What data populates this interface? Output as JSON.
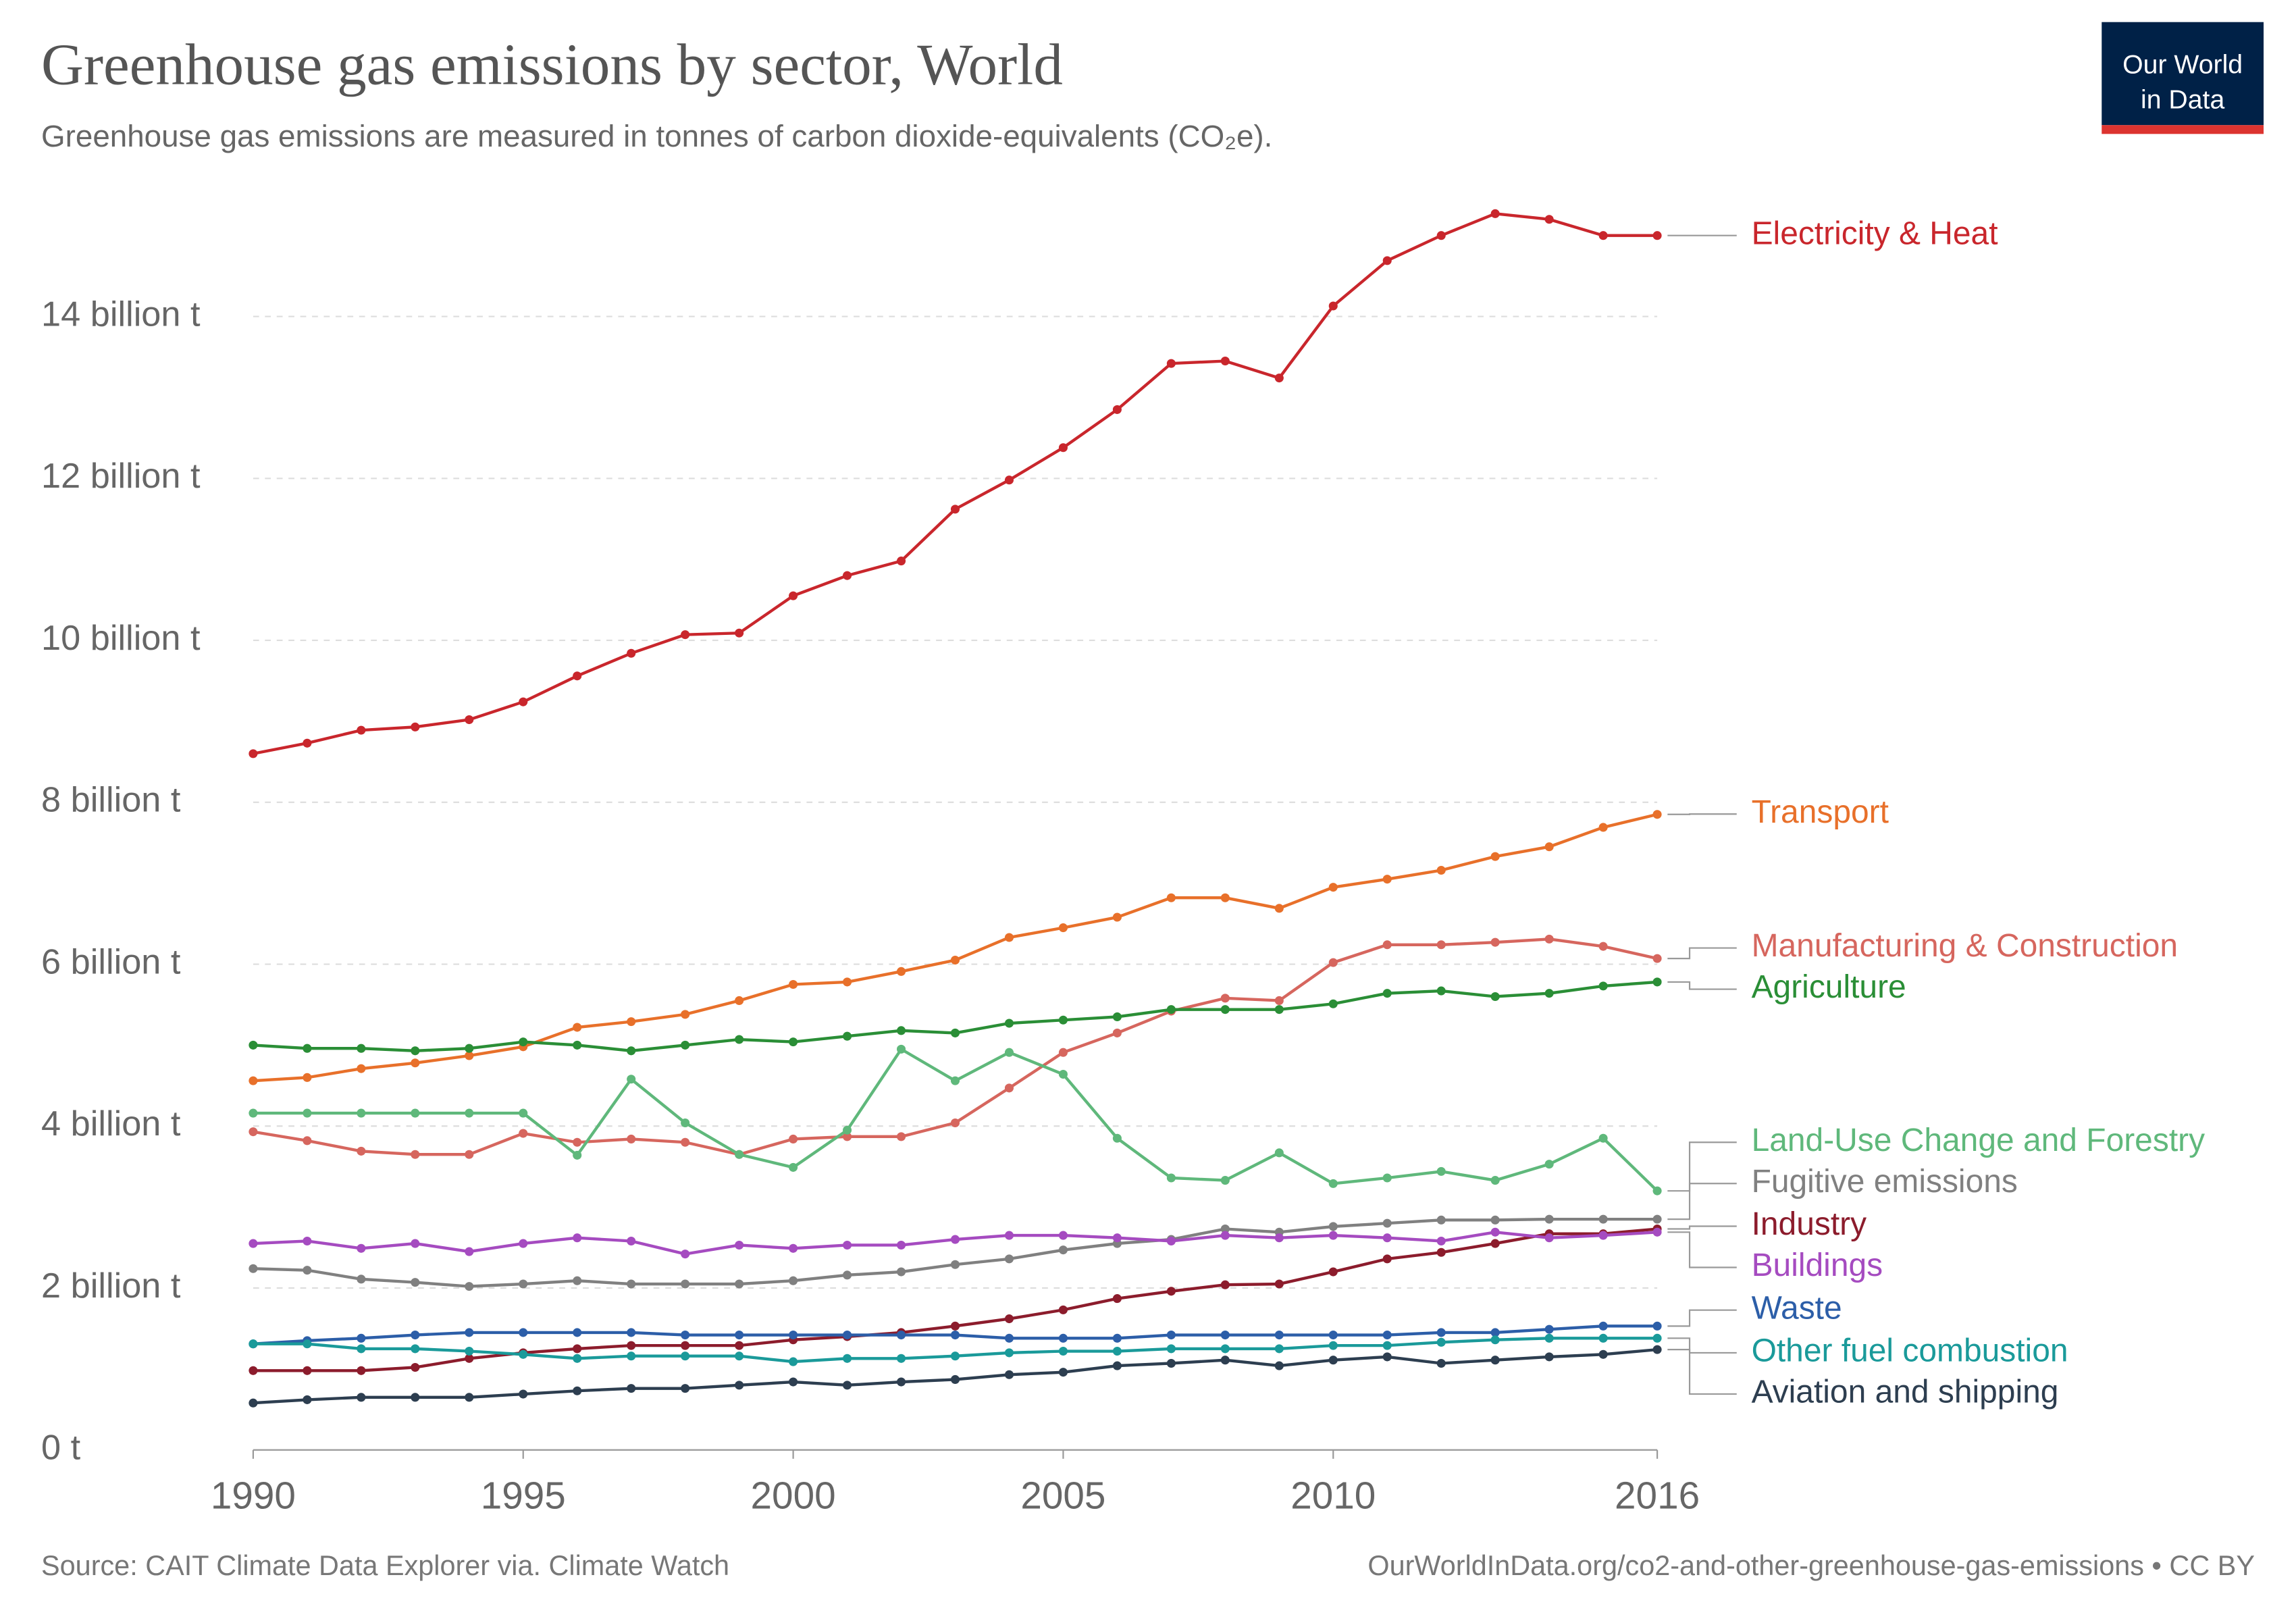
{
  "chart_data": {
    "type": "line",
    "title": "Greenhouse gas emissions by sector, World",
    "subtitle": "Greenhouse gas emissions are measured in tonnes of carbon dioxide-equivalents (CO₂e).",
    "logo": [
      "Our World",
      "in Data"
    ],
    "source": "Source: CAIT Climate Data Explorer via. Climate Watch",
    "url": "OurWorldInData.org/co2-and-other-greenhouse-gas-emissions • CC BY",
    "x": [
      1990,
      1991,
      1992,
      1993,
      1994,
      1995,
      1996,
      1997,
      1998,
      1999,
      2000,
      2001,
      2002,
      2003,
      2004,
      2005,
      2006,
      2007,
      2008,
      2009,
      2010,
      2011,
      2012,
      2013,
      2014,
      2015,
      2016
    ],
    "xlim": [
      1990,
      2016
    ],
    "xticks": [
      1990,
      1995,
      2000,
      2005,
      2010,
      2016
    ],
    "ylim": [
      0,
      15.4
    ],
    "yticks": [
      {
        "value": 0,
        "label": "0 t"
      },
      {
        "value": 2,
        "label": "2 billion t"
      },
      {
        "value": 4,
        "label": "4 billion t"
      },
      {
        "value": 6,
        "label": "6 billion t"
      },
      {
        "value": 8,
        "label": "8 billion t"
      },
      {
        "value": 10,
        "label": "10 billion t"
      },
      {
        "value": 12,
        "label": "12 billion t"
      },
      {
        "value": 14,
        "label": "14 billion t"
      }
    ],
    "grid": true,
    "series": [
      {
        "name": "Electricity & Heat",
        "color": "#c9262c",
        "values": [
          8.6,
          8.73,
          8.89,
          8.93,
          9.02,
          9.24,
          9.56,
          9.84,
          10.07,
          10.09,
          10.55,
          10.8,
          10.98,
          11.62,
          11.98,
          12.38,
          12.85,
          13.42,
          13.45,
          13.24,
          14.13,
          14.69,
          15.0,
          15.27,
          15.2,
          15.0,
          15.0
        ]
      },
      {
        "name": "Transport",
        "color": "#e8702a",
        "values": [
          4.56,
          4.6,
          4.71,
          4.78,
          4.87,
          4.98,
          5.22,
          5.29,
          5.38,
          5.55,
          5.75,
          5.78,
          5.91,
          6.05,
          6.33,
          6.45,
          6.58,
          6.82,
          6.82,
          6.69,
          6.95,
          7.05,
          7.16,
          7.33,
          7.45,
          7.69,
          7.85
        ]
      },
      {
        "name": "Manufacturing & Construction",
        "color": "#d6665e",
        "values": [
          3.93,
          3.82,
          3.69,
          3.65,
          3.65,
          3.91,
          3.8,
          3.84,
          3.8,
          3.65,
          3.84,
          3.87,
          3.87,
          4.04,
          4.47,
          4.91,
          5.15,
          5.42,
          5.58,
          5.55,
          6.02,
          6.24,
          6.24,
          6.27,
          6.31,
          6.22,
          6.07
        ]
      },
      {
        "name": "Agriculture",
        "color": "#2a8e36",
        "values": [
          5.0,
          4.96,
          4.96,
          4.93,
          4.96,
          5.04,
          5.0,
          4.93,
          5.0,
          5.07,
          5.04,
          5.11,
          5.18,
          5.15,
          5.27,
          5.31,
          5.35,
          5.44,
          5.44,
          5.44,
          5.51,
          5.64,
          5.67,
          5.6,
          5.64,
          5.73,
          5.78
        ]
      },
      {
        "name": "Land-Use Change and Forestry",
        "color": "#5fb87b",
        "values": [
          4.16,
          4.16,
          4.16,
          4.16,
          4.16,
          4.16,
          3.64,
          4.58,
          4.04,
          3.65,
          3.49,
          3.95,
          4.95,
          4.56,
          4.91,
          4.64,
          3.85,
          3.36,
          3.33,
          3.67,
          3.29,
          3.36,
          3.44,
          3.33,
          3.53,
          3.85,
          3.2
        ]
      },
      {
        "name": "Fugitive emissions",
        "color": "#808080",
        "values": [
          2.24,
          2.22,
          2.11,
          2.07,
          2.02,
          2.05,
          2.09,
          2.05,
          2.05,
          2.05,
          2.09,
          2.16,
          2.2,
          2.29,
          2.36,
          2.47,
          2.55,
          2.6,
          2.73,
          2.69,
          2.76,
          2.8,
          2.84,
          2.84,
          2.85,
          2.85,
          2.85
        ]
      },
      {
        "name": "Industry",
        "color": "#8c1c2c",
        "values": [
          0.98,
          0.98,
          0.98,
          1.02,
          1.13,
          1.2,
          1.25,
          1.29,
          1.29,
          1.29,
          1.36,
          1.4,
          1.45,
          1.53,
          1.62,
          1.73,
          1.87,
          1.96,
          2.04,
          2.05,
          2.2,
          2.36,
          2.44,
          2.55,
          2.67,
          2.67,
          2.73
        ]
      },
      {
        "name": "Buildings",
        "color": "#a54bc0",
        "values": [
          2.55,
          2.58,
          2.49,
          2.55,
          2.45,
          2.55,
          2.62,
          2.58,
          2.42,
          2.53,
          2.49,
          2.53,
          2.53,
          2.6,
          2.65,
          2.65,
          2.62,
          2.58,
          2.65,
          2.62,
          2.65,
          2.62,
          2.58,
          2.69,
          2.62,
          2.65,
          2.69
        ]
      },
      {
        "name": "Waste",
        "color": "#2c5ea8",
        "values": [
          1.31,
          1.35,
          1.38,
          1.42,
          1.45,
          1.45,
          1.45,
          1.45,
          1.42,
          1.42,
          1.42,
          1.42,
          1.42,
          1.42,
          1.38,
          1.38,
          1.38,
          1.42,
          1.42,
          1.42,
          1.42,
          1.42,
          1.45,
          1.45,
          1.49,
          1.53,
          1.53
        ]
      },
      {
        "name": "Other fuel combustion",
        "color": "#1a9a9a",
        "values": [
          1.31,
          1.31,
          1.25,
          1.25,
          1.22,
          1.18,
          1.13,
          1.16,
          1.16,
          1.16,
          1.09,
          1.13,
          1.13,
          1.16,
          1.2,
          1.22,
          1.22,
          1.25,
          1.25,
          1.25,
          1.29,
          1.29,
          1.33,
          1.36,
          1.38,
          1.38,
          1.38
        ]
      },
      {
        "name": "Aviation and shipping",
        "color": "#2d3e50",
        "values": [
          0.58,
          0.62,
          0.65,
          0.65,
          0.65,
          0.69,
          0.73,
          0.76,
          0.76,
          0.8,
          0.84,
          0.8,
          0.84,
          0.87,
          0.93,
          0.96,
          1.04,
          1.07,
          1.11,
          1.04,
          1.11,
          1.15,
          1.07,
          1.11,
          1.15,
          1.18,
          1.24
        ]
      }
    ]
  }
}
